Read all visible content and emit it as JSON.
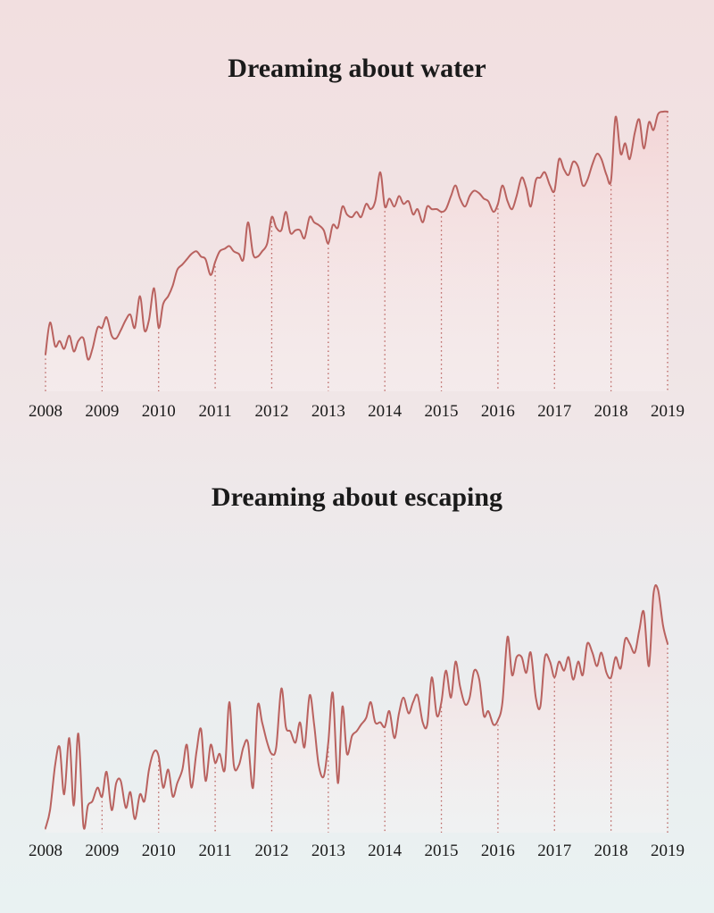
{
  "colors": {
    "line": "#b9625f",
    "fill_top": "#f3d3d4",
    "fill_bottom": "#fbf4f4"
  },
  "chart_data": [
    {
      "type": "line",
      "title": "Dreaming about water",
      "x_ticks": [
        "2008",
        "2009",
        "2010",
        "2011",
        "2012",
        "2013",
        "2014",
        "2015",
        "2016",
        "2017",
        "2018",
        "2019"
      ],
      "xlim": [
        2008,
        2019
      ],
      "ylim": [
        0,
        100
      ],
      "grid": false,
      "legend": "none",
      "series": [
        {
          "x": [
            2008.0,
            2008.08,
            2008.17,
            2008.25,
            2008.33,
            2008.42,
            2008.5,
            2008.58,
            2008.67,
            2008.75,
            2008.83,
            2008.92,
            2009.0,
            2009.08,
            2009.17,
            2009.25,
            2009.33,
            2009.42,
            2009.5,
            2009.58,
            2009.67,
            2009.75,
            2009.83,
            2009.92,
            2010.0,
            2010.08,
            2010.17,
            2010.25,
            2010.33,
            2010.42,
            2010.5,
            2010.58,
            2010.67,
            2010.75,
            2010.83,
            2010.92,
            2011.0,
            2011.08,
            2011.17,
            2011.25,
            2011.33,
            2011.42,
            2011.5,
            2011.58,
            2011.67,
            2011.75,
            2011.83,
            2011.92,
            2012.0,
            2012.08,
            2012.17,
            2012.25,
            2012.33,
            2012.42,
            2012.5,
            2012.58,
            2012.67,
            2012.75,
            2012.83,
            2012.92,
            2013.0,
            2013.08,
            2013.17,
            2013.25,
            2013.33,
            2013.42,
            2013.5,
            2013.58,
            2013.67,
            2013.75,
            2013.83,
            2013.92,
            2014.0,
            2014.08,
            2014.17,
            2014.25,
            2014.33,
            2014.42,
            2014.5,
            2014.58,
            2014.67,
            2014.75,
            2014.83,
            2014.92,
            2015.0,
            2015.08,
            2015.17,
            2015.25,
            2015.33,
            2015.42,
            2015.5,
            2015.58,
            2015.67,
            2015.75,
            2015.83,
            2015.92,
            2016.0,
            2016.08,
            2016.17,
            2016.25,
            2016.33,
            2016.42,
            2016.5,
            2016.58,
            2016.67,
            2016.75,
            2016.83,
            2016.92,
            2017.0,
            2017.08,
            2017.17,
            2017.25,
            2017.33,
            2017.42,
            2017.5,
            2017.58,
            2017.67,
            2017.75,
            2017.83,
            2017.92,
            2018.0,
            2018.08,
            2018.17,
            2018.25,
            2018.33,
            2018.42,
            2018.5,
            2018.58,
            2018.67,
            2018.75,
            2018.83,
            2018.92,
            2019.0
          ],
          "y": [
            8,
            20,
            11,
            13,
            10,
            15,
            9,
            13,
            14,
            6,
            10,
            18,
            18,
            22,
            15,
            14,
            17,
            21,
            23,
            18,
            30,
            17,
            21,
            33,
            18,
            27,
            30,
            34,
            40,
            42,
            44,
            46,
            47,
            45,
            44,
            38,
            43,
            47,
            48,
            49,
            47,
            46,
            44,
            58,
            46,
            45,
            47,
            50,
            60,
            56,
            55,
            62,
            54,
            55,
            55,
            52,
            60,
            58,
            57,
            55,
            50,
            57,
            56,
            64,
            61,
            60,
            62,
            60,
            65,
            63,
            66,
            77,
            64,
            67,
            64,
            68,
            65,
            66,
            61,
            63,
            58,
            64,
            63,
            63,
            62,
            63,
            68,
            72,
            67,
            64,
            68,
            70,
            69,
            67,
            66,
            62,
            65,
            72,
            66,
            63,
            68,
            75,
            71,
            64,
            74,
            75,
            77,
            72,
            70,
            82,
            78,
            76,
            81,
            79,
            72,
            74,
            80,
            84,
            82,
            76,
            74,
            98,
            84,
            88,
            82,
            92,
            97,
            86,
            96,
            93,
            99,
            100,
            100
          ]
        }
      ]
    },
    {
      "type": "line",
      "title": "Dreaming about escaping",
      "x_ticks": [
        "2008",
        "2009",
        "2010",
        "2011",
        "2012",
        "2013",
        "2014",
        "2015",
        "2016",
        "2017",
        "2018",
        "2019"
      ],
      "xlim": [
        2008,
        2019
      ],
      "ylim": [
        0,
        100
      ],
      "grid": false,
      "legend": "none",
      "series": [
        {
          "x": [
            2008.0,
            2008.08,
            2008.17,
            2008.25,
            2008.33,
            2008.42,
            2008.5,
            2008.58,
            2008.67,
            2008.75,
            2008.83,
            2008.92,
            2009.0,
            2009.08,
            2009.17,
            2009.25,
            2009.33,
            2009.42,
            2009.5,
            2009.58,
            2009.67,
            2009.75,
            2009.83,
            2009.92,
            2010.0,
            2010.08,
            2010.17,
            2010.25,
            2010.33,
            2010.42,
            2010.5,
            2010.58,
            2010.67,
            2010.75,
            2010.83,
            2010.92,
            2011.0,
            2011.08,
            2011.17,
            2011.25,
            2011.33,
            2011.42,
            2011.5,
            2011.58,
            2011.67,
            2011.75,
            2011.83,
            2011.92,
            2012.0,
            2012.08,
            2012.17,
            2012.25,
            2012.33,
            2012.42,
            2012.5,
            2012.58,
            2012.67,
            2012.75,
            2012.83,
            2012.92,
            2013.0,
            2013.08,
            2013.17,
            2013.25,
            2013.33,
            2013.42,
            2013.5,
            2013.58,
            2013.67,
            2013.75,
            2013.83,
            2013.92,
            2014.0,
            2014.08,
            2014.17,
            2014.25,
            2014.33,
            2014.42,
            2014.5,
            2014.58,
            2014.67,
            2014.75,
            2014.83,
            2014.92,
            2015.0,
            2015.08,
            2015.17,
            2015.25,
            2015.33,
            2015.42,
            2015.5,
            2015.58,
            2015.67,
            2015.75,
            2015.83,
            2015.92,
            2016.0,
            2016.08,
            2016.17,
            2016.25,
            2016.33,
            2016.42,
            2016.5,
            2016.58,
            2016.67,
            2016.75,
            2016.83,
            2016.92,
            2017.0,
            2017.08,
            2017.17,
            2017.25,
            2017.33,
            2017.42,
            2017.5,
            2017.58,
            2017.67,
            2017.75,
            2017.83,
            2017.92,
            2018.0,
            2018.08,
            2018.17,
            2018.25,
            2018.33,
            2018.42,
            2018.5,
            2018.58,
            2018.67,
            2018.75,
            2018.83,
            2018.92,
            2019.0
          ],
          "y": [
            2,
            10,
            30,
            38,
            17,
            42,
            12,
            44,
            3,
            12,
            14,
            20,
            16,
            27,
            10,
            22,
            23,
            11,
            18,
            6,
            17,
            14,
            28,
            36,
            34,
            20,
            28,
            16,
            22,
            28,
            39,
            20,
            36,
            46,
            23,
            39,
            31,
            35,
            28,
            58,
            30,
            30,
            38,
            40,
            20,
            56,
            49,
            40,
            35,
            38,
            64,
            47,
            45,
            40,
            49,
            38,
            61,
            48,
            30,
            25,
            40,
            62,
            22,
            56,
            35,
            43,
            45,
            48,
            51,
            58,
            49,
            49,
            47,
            54,
            42,
            53,
            60,
            53,
            58,
            61,
            49,
            48,
            69,
            52,
            58,
            72,
            60,
            76,
            65,
            57,
            60,
            72,
            68,
            52,
            54,
            48,
            50,
            58,
            87,
            70,
            78,
            78,
            71,
            80,
            60,
            56,
            78,
            76,
            69,
            76,
            72,
            78,
            68,
            76,
            70,
            84,
            80,
            74,
            80,
            71,
            69,
            78,
            73,
            86,
            84,
            80,
            90,
            98,
            74,
            106,
            108,
            92,
            84
          ]
        }
      ]
    }
  ]
}
